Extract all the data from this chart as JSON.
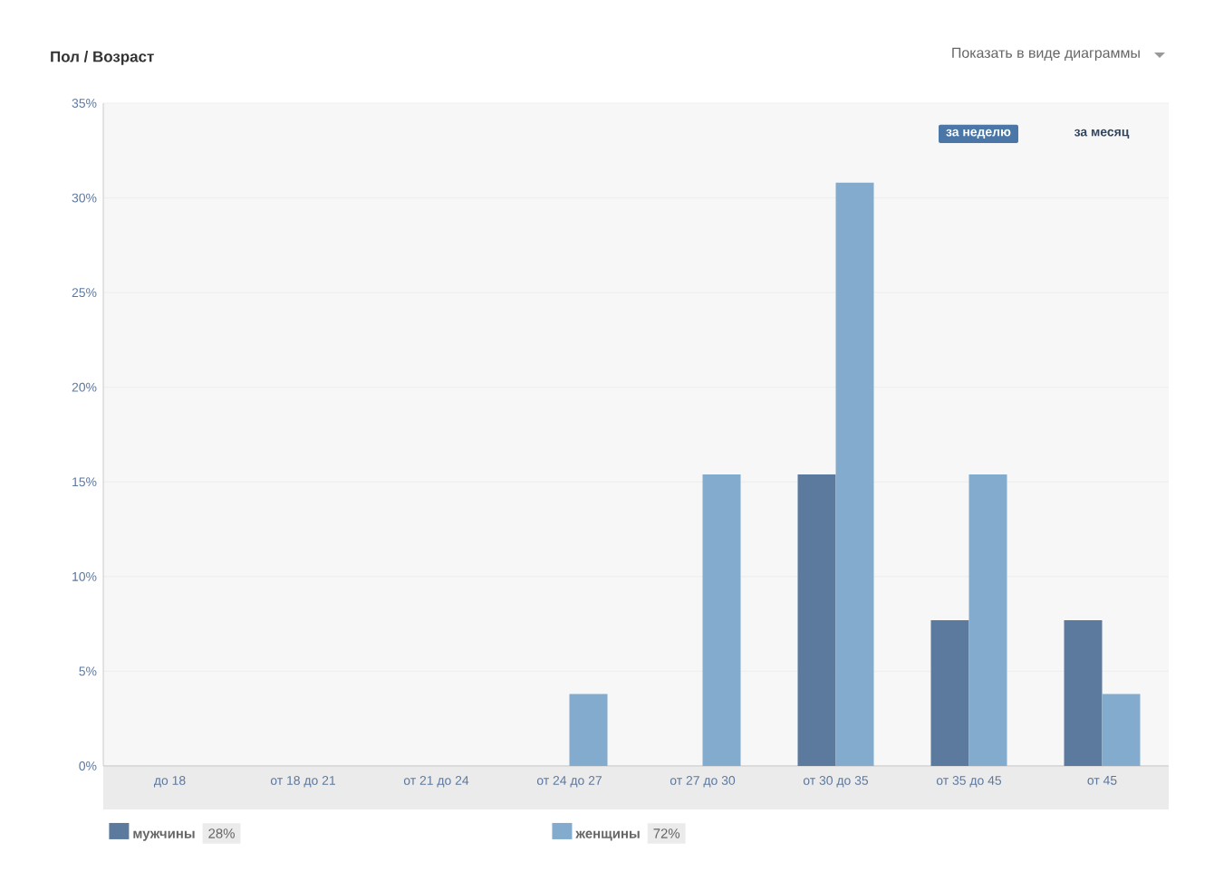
{
  "chart_data": {
    "type": "bar",
    "title": "Пол / Возраст",
    "categories": [
      "до 18",
      "от 18 до 21",
      "от 21 до 24",
      "от 24 до 27",
      "от 27 до 30",
      "от 30 до 35",
      "от 35 до 45",
      "от 45"
    ],
    "series": [
      {
        "name": "мужчины",
        "color": "#5b7a9e",
        "values": [
          0,
          0,
          0,
          0,
          0,
          15.4,
          7.7,
          7.7
        ]
      },
      {
        "name": "женщины",
        "color": "#82abcd",
        "values": [
          0,
          0,
          0,
          3.8,
          15.4,
          30.8,
          15.4,
          3.8
        ]
      }
    ],
    "ylim": [
      0,
      35
    ],
    "yticks": [
      {
        "value": 0,
        "label": "0%"
      },
      {
        "value": 5,
        "label": "5%"
      },
      {
        "value": 10,
        "label": "10%"
      },
      {
        "value": 15,
        "label": "15%"
      },
      {
        "value": 20,
        "label": "20%"
      },
      {
        "value": 25,
        "label": "25%"
      },
      {
        "value": 30,
        "label": "30%"
      },
      {
        "value": 35,
        "label": "35%"
      }
    ],
    "grid": "y",
    "legend": "bottom left",
    "annotations": [
      "Показать в виде диаграммы",
      "за неделю",
      "за месяц",
      "28%",
      "72%"
    ]
  }
}
